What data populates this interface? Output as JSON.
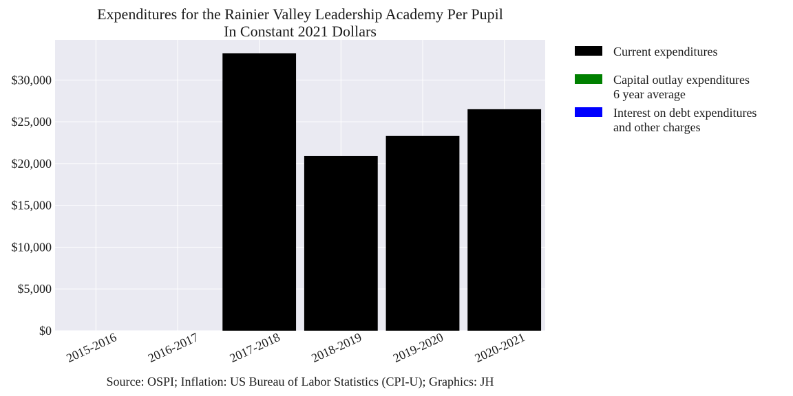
{
  "chart_data": {
    "type": "bar",
    "title": "Expenditures for the Rainier Valley Leadership Academy Per Pupil\nIn Constant 2021 Dollars",
    "title_lines": [
      "Expenditures for the Rainier Valley Leadership Academy Per Pupil",
      "In Constant 2021 Dollars"
    ],
    "xlabel": "",
    "ylabel": "",
    "categories": [
      "2015-2016",
      "2016-2017",
      "2017-2018",
      "2018-2019",
      "2019-2020",
      "2020-2021"
    ],
    "series": [
      {
        "name": "Current expenditures",
        "color": "#000000",
        "values": [
          0,
          0,
          33200,
          20900,
          23300,
          26500
        ]
      },
      {
        "name": "Capital outlay expenditures\n6 year average",
        "color": "#008000",
        "values": [
          0,
          0,
          0,
          0,
          0,
          0
        ]
      },
      {
        "name": "Interest on debt expenditures\nand other charges",
        "color": "#0000ff",
        "values": [
          0,
          0,
          0,
          0,
          0,
          0
        ]
      }
    ],
    "legend": [
      {
        "lines": [
          "Current expenditures"
        ],
        "color": "#000000"
      },
      {
        "lines": [
          "Capital outlay expenditures",
          "6 year average"
        ],
        "color": "#008000"
      },
      {
        "lines": [
          "Interest on debt expenditures",
          "and other charges"
        ],
        "color": "#0000ff"
      }
    ],
    "legend_position": "outside-right",
    "ylim": [
      0,
      34800
    ],
    "yticks": [
      0,
      5000,
      10000,
      15000,
      20000,
      25000,
      30000
    ],
    "ytick_labels": [
      "$0",
      "$5,000",
      "$10,000",
      "$15,000",
      "$20,000",
      "$25,000",
      "$30,000"
    ],
    "grid": true,
    "plot_background": "#eaeaf2",
    "source_note": "Source: OSPI; Inflation: US Bureau of Labor Statistics (CPI-U); Graphics: JH"
  }
}
